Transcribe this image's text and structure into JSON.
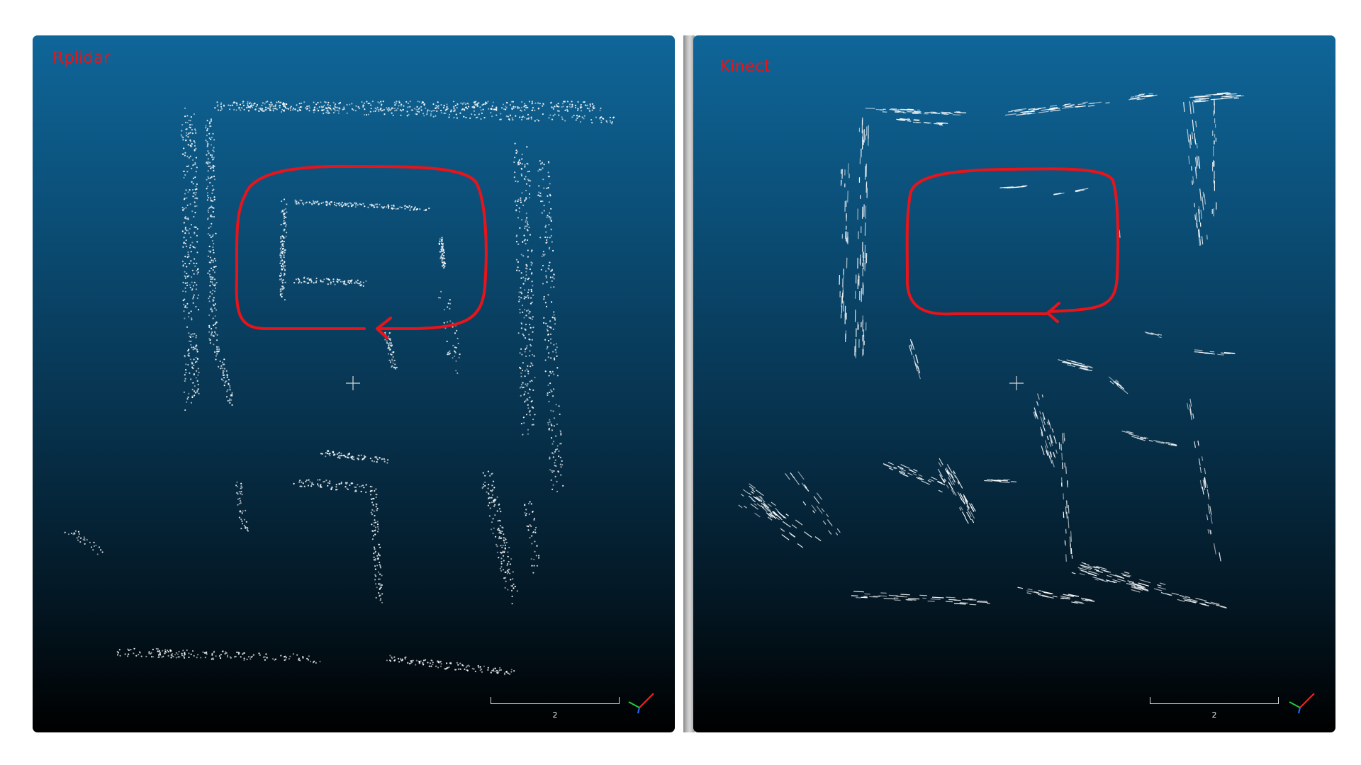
{
  "viewports": [
    {
      "title": "Rplidar",
      "scale_label": "2"
    },
    {
      "title": "Kinect",
      "scale_label": "2"
    }
  ],
  "colors": {
    "annotation": "#e8141a",
    "points": "#ffffff",
    "background_top": "#0f6699",
    "background_bottom": "#000000"
  },
  "icons": [
    "center-crosshair-icon",
    "axes-triad-icon"
  ]
}
